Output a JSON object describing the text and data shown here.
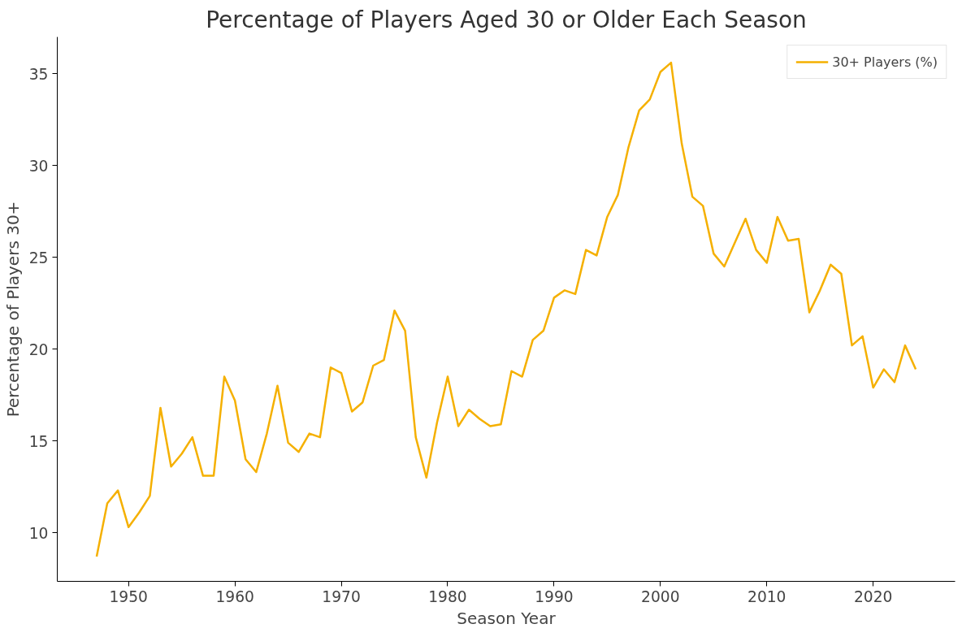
{
  "chart_data": {
    "type": "line",
    "title": "Percentage of Players Aged 30 or Older Each Season",
    "xlabel": "Season Year",
    "ylabel": "Percentage of Players 30+",
    "x": [
      1947,
      1948,
      1949,
      1950,
      1951,
      1952,
      1953,
      1954,
      1955,
      1956,
      1957,
      1958,
      1959,
      1960,
      1961,
      1962,
      1963,
      1964,
      1965,
      1966,
      1967,
      1968,
      1969,
      1970,
      1971,
      1972,
      1973,
      1974,
      1975,
      1976,
      1977,
      1978,
      1979,
      1980,
      1981,
      1982,
      1983,
      1984,
      1985,
      1986,
      1987,
      1988,
      1989,
      1990,
      1991,
      1992,
      1993,
      1994,
      1995,
      1996,
      1997,
      1998,
      1999,
      2000,
      2001,
      2002,
      2003,
      2004,
      2005,
      2006,
      2007,
      2008,
      2009,
      2010,
      2011,
      2012,
      2013,
      2014,
      2015,
      2016,
      2017,
      2018,
      2019,
      2020,
      2021,
      2022,
      2023,
      2024
    ],
    "series": [
      {
        "name": "30+ Players (%)",
        "color": "#f5b000",
        "values": [
          8.7,
          11.6,
          12.3,
          10.3,
          11.1,
          12.0,
          16.8,
          13.6,
          14.3,
          15.2,
          13.1,
          13.1,
          18.5,
          17.2,
          14.0,
          13.3,
          15.4,
          18.0,
          14.9,
          14.4,
          15.4,
          15.2,
          19.0,
          18.7,
          16.6,
          17.1,
          19.1,
          19.4,
          22.1,
          21.0,
          15.2,
          13.0,
          16.0,
          18.5,
          15.8,
          16.7,
          16.2,
          15.8,
          15.9,
          18.8,
          18.5,
          20.5,
          21.0,
          22.8,
          23.2,
          23.0,
          25.4,
          25.1,
          27.2,
          28.4,
          31.0,
          33.0,
          33.6,
          35.1,
          35.6,
          31.2,
          28.3,
          27.8,
          25.2,
          24.5,
          25.8,
          27.1,
          25.4,
          24.7,
          27.2,
          25.9,
          26.0,
          22.0,
          23.2,
          24.6,
          24.1,
          20.2,
          20.7,
          17.9,
          18.9,
          18.2,
          20.2,
          18.9
        ]
      }
    ],
    "xlim": [
      1943.3,
      2027.7
    ],
    "ylim": [
      7.35,
      37.0
    ],
    "xticks": [
      1950,
      1960,
      1970,
      1980,
      1990,
      2000,
      2010,
      2020
    ],
    "yticks": [
      10,
      15,
      20,
      25,
      30,
      35
    ],
    "legend": "top right",
    "line_style": "solid"
  }
}
